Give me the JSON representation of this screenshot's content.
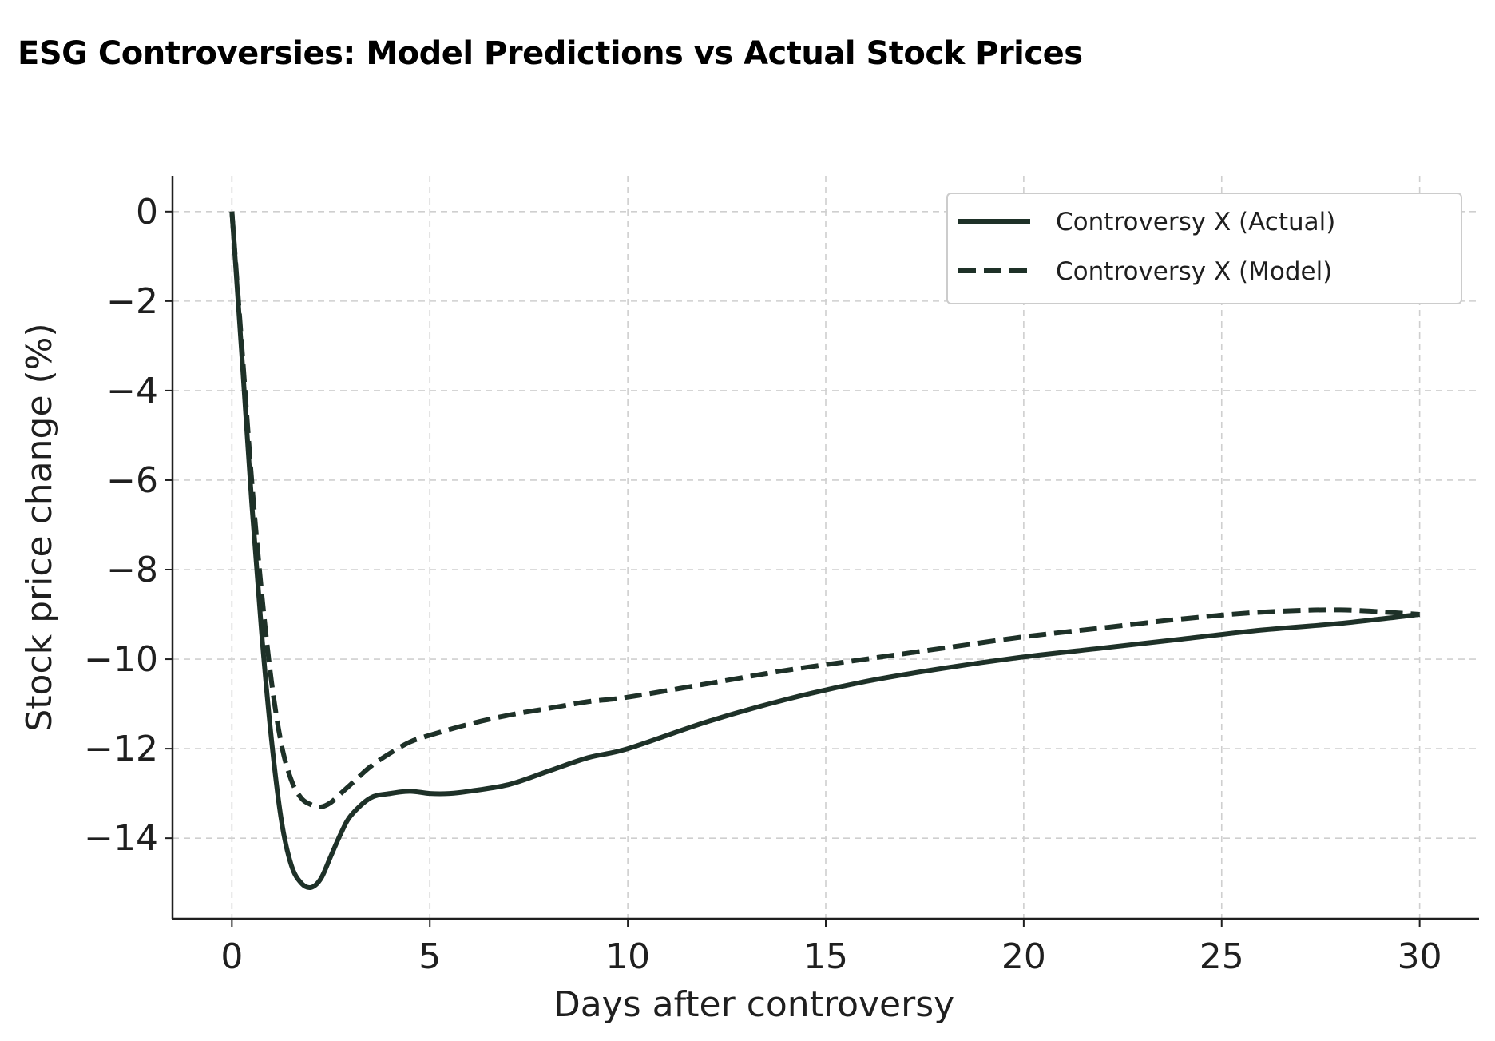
{
  "chart_data": {
    "type": "line",
    "title": "ESG Controversies: Model Predictions vs Actual Stock Prices",
    "xlabel": "Days after controversy",
    "ylabel": "Stock price change (%)",
    "xlim": [
      -1.5,
      31.5
    ],
    "ylim": [
      -15.8,
      0.8
    ],
    "xticks": [
      0,
      5,
      10,
      15,
      20,
      25,
      30
    ],
    "yticks": [
      0,
      -2,
      -4,
      -6,
      -8,
      -10,
      -12,
      -14
    ],
    "grid": true,
    "legend_position": "top-right",
    "color": "#1e3128",
    "series": [
      {
        "name": "Controversy X (Actual)",
        "style": "solid",
        "x": [
          0,
          0.25,
          0.5,
          0.75,
          1,
          1.25,
          1.5,
          1.75,
          2,
          2.25,
          2.5,
          2.75,
          3,
          3.5,
          4,
          4.5,
          5,
          5.5,
          6,
          7,
          8,
          9,
          10,
          12,
          14,
          16,
          18,
          20,
          22,
          24,
          26,
          28,
          30
        ],
        "y": [
          0,
          -3.2,
          -6.5,
          -9.4,
          -11.8,
          -13.6,
          -14.6,
          -15.0,
          -15.1,
          -14.9,
          -14.4,
          -13.9,
          -13.5,
          -13.1,
          -13.0,
          -12.95,
          -13.0,
          -13.0,
          -12.95,
          -12.8,
          -12.5,
          -12.2,
          -12.0,
          -11.4,
          -10.9,
          -10.5,
          -10.2,
          -9.95,
          -9.75,
          -9.55,
          -9.35,
          -9.2,
          -9.0
        ]
      },
      {
        "name": "Controversy X (Model)",
        "style": "dashed",
        "x": [
          0,
          0.25,
          0.5,
          0.75,
          1,
          1.25,
          1.5,
          1.75,
          2,
          2.25,
          2.5,
          2.75,
          3,
          3.5,
          4,
          4.5,
          5,
          6,
          7,
          8,
          9,
          10,
          12,
          14,
          16,
          18,
          20,
          22,
          24,
          26,
          28,
          30
        ],
        "y": [
          0,
          -3.0,
          -6.0,
          -8.5,
          -10.5,
          -11.9,
          -12.7,
          -13.1,
          -13.25,
          -13.3,
          -13.2,
          -13.0,
          -12.8,
          -12.4,
          -12.1,
          -11.85,
          -11.7,
          -11.45,
          -11.25,
          -11.1,
          -10.95,
          -10.85,
          -10.55,
          -10.25,
          -10.0,
          -9.75,
          -9.5,
          -9.3,
          -9.1,
          -8.95,
          -8.9,
          -9.0
        ]
      }
    ]
  }
}
